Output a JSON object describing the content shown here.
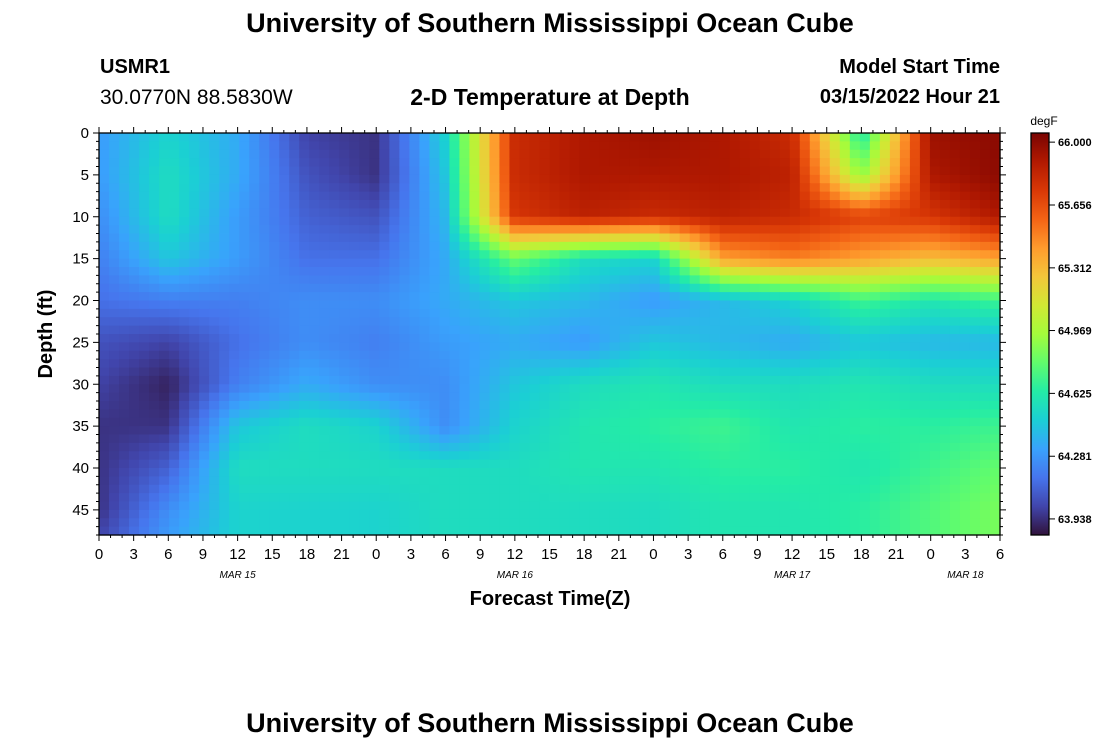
{
  "page": {
    "title": "University of Southern Mississippi Ocean Cube",
    "station_id": "USMR1",
    "station_coords": "30.0770N  88.5830W",
    "subtitle": "2-D Temperature at Depth",
    "model_start_label": "Model Start Time",
    "model_start_value": "03/15/2022 Hour 21",
    "footer_title": "University of Southern Mississippi Ocean Cube"
  },
  "chart_data": {
    "type": "heatmap",
    "title": "2-D Temperature at Depth",
    "xlabel": "Forecast Time(Z)",
    "ylabel": "Depth (ft)",
    "colorbar_label": "degF",
    "x_hours": [
      0,
      6,
      12,
      18,
      24,
      30,
      36,
      42,
      48,
      54,
      60,
      66,
      72,
      78
    ],
    "x_tick_labels": [
      "0",
      "3",
      "6",
      "9",
      "12",
      "15",
      "18",
      "21",
      "0",
      "3",
      "6",
      "9",
      "12",
      "15",
      "18",
      "21",
      "0",
      "3",
      "6",
      "9",
      "12",
      "15",
      "18",
      "21",
      "0",
      "3",
      "6"
    ],
    "date_labels": [
      {
        "text": "MAR 15",
        "tick_index": 4
      },
      {
        "text": "MAR 16",
        "tick_index": 12
      },
      {
        "text": "MAR 17",
        "tick_index": 20
      },
      {
        "text": "MAR 18",
        "tick_index": 25
      }
    ],
    "y_ticks": [
      0,
      5,
      10,
      15,
      20,
      25,
      30,
      35,
      40,
      45
    ],
    "ylim": [
      0,
      48
    ],
    "depths_ft": [
      0,
      5,
      10,
      15,
      20,
      25,
      30,
      35,
      40,
      45,
      48
    ],
    "temperature_degF": [
      [
        64.3,
        64.5,
        64.35,
        64.0,
        63.95,
        64.5,
        65.8,
        65.9,
        65.95,
        65.9,
        65.8,
        64.6,
        65.95,
        66.0
      ],
      [
        64.3,
        64.55,
        64.35,
        64.05,
        63.95,
        64.45,
        65.8,
        65.9,
        65.9,
        65.9,
        65.85,
        64.9,
        65.9,
        66.0
      ],
      [
        64.25,
        64.55,
        64.3,
        64.1,
        64.05,
        64.4,
        65.75,
        65.85,
        65.8,
        65.85,
        65.8,
        65.7,
        65.75,
        65.9
      ],
      [
        64.2,
        64.45,
        64.3,
        64.15,
        64.15,
        64.35,
        64.8,
        64.55,
        64.5,
        65.4,
        65.5,
        65.4,
        65.3,
        65.4
      ],
      [
        64.15,
        64.2,
        64.2,
        64.25,
        64.25,
        64.35,
        64.45,
        64.4,
        64.3,
        64.4,
        64.5,
        64.7,
        64.6,
        64.7
      ],
      [
        64.05,
        64.0,
        64.15,
        64.25,
        64.2,
        64.3,
        64.35,
        64.3,
        64.45,
        64.4,
        64.35,
        64.45,
        64.4,
        64.4
      ],
      [
        64.0,
        63.9,
        64.2,
        64.35,
        64.25,
        64.25,
        64.45,
        64.55,
        64.6,
        64.55,
        64.55,
        64.6,
        64.55,
        64.55
      ],
      [
        63.95,
        63.95,
        64.45,
        64.55,
        64.5,
        64.25,
        64.5,
        64.6,
        64.65,
        64.7,
        64.6,
        64.65,
        64.65,
        64.7
      ],
      [
        63.95,
        64.1,
        64.55,
        64.55,
        64.55,
        64.55,
        64.55,
        64.6,
        64.6,
        64.65,
        64.65,
        64.6,
        64.7,
        64.8
      ],
      [
        63.95,
        64.25,
        64.5,
        64.5,
        64.5,
        64.55,
        64.55,
        64.55,
        64.55,
        64.6,
        64.6,
        64.65,
        64.75,
        64.85
      ],
      [
        64.0,
        64.3,
        64.5,
        64.5,
        64.5,
        64.55,
        64.55,
        64.55,
        64.55,
        64.6,
        64.6,
        64.65,
        64.75,
        64.85
      ]
    ],
    "colorbar_ticks": [
      "66.000",
      "65.656",
      "65.312",
      "64.969",
      "64.625",
      "64.281",
      "63.938"
    ],
    "colorbar_range": [
      63.85,
      66.05
    ],
    "colormap": [
      "#30123b",
      "#4145ab",
      "#4675ed",
      "#39a2fc",
      "#1bcfd4",
      "#24eca6",
      "#61fc6c",
      "#a4fc3b",
      "#d1e834",
      "#f3c63a",
      "#fe9b2d",
      "#f36315",
      "#d93806",
      "#b11901",
      "#7a0402"
    ]
  }
}
